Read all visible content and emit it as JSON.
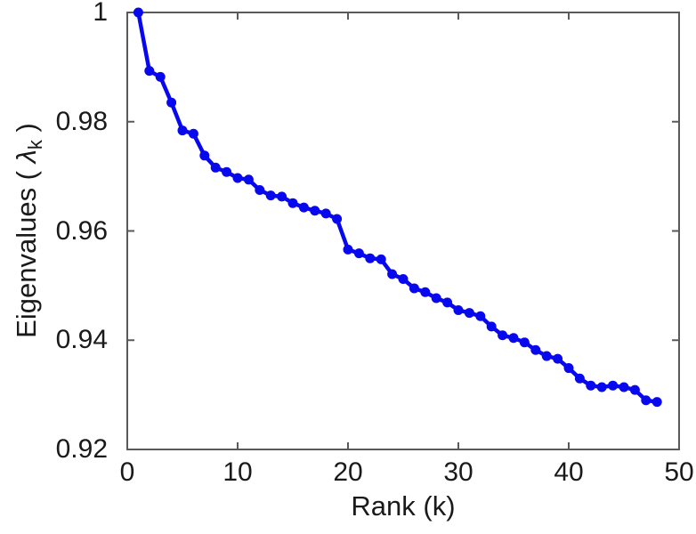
{
  "figure": {
    "background": "#ffffff",
    "axis_color": "#5a5a5a",
    "text_color": "#1a1a1a"
  },
  "chart_data": {
    "type": "line",
    "title": "",
    "xlabel": "Rank (k)",
    "ylabel": "Eigenvalues ( λk )",
    "ylabel_parts": {
      "prefix": "Eigenvalues ( ",
      "symbol": "λ",
      "subscript": "k",
      "suffix": " )"
    },
    "xlim": [
      0,
      50
    ],
    "ylim": [
      0.92,
      1.0
    ],
    "x_ticks": [
      0,
      10,
      20,
      30,
      40,
      50
    ],
    "x_tick_labels": [
      "0",
      "10",
      "20",
      "30",
      "40",
      "50"
    ],
    "y_ticks": [
      0.92,
      0.94,
      0.96,
      0.98,
      1
    ],
    "y_tick_labels": [
      "0.92",
      "0.94",
      "0.96",
      "0.98",
      "1"
    ],
    "grid": false,
    "legend": "none",
    "line_color": "#0808ee",
    "marker": "circle",
    "series": [
      {
        "name": "eigenvalues",
        "x": [
          1,
          2,
          3,
          4,
          5,
          6,
          7,
          8,
          9,
          10,
          11,
          12,
          13,
          14,
          15,
          16,
          17,
          18,
          19,
          20,
          21,
          22,
          23,
          24,
          25,
          26,
          27,
          28,
          29,
          30,
          31,
          32,
          33,
          34,
          35,
          36,
          37,
          38,
          39,
          40,
          41,
          42,
          43,
          44,
          45,
          46,
          47,
          48
        ],
        "y": [
          1.0,
          0.9893,
          0.9882,
          0.9835,
          0.9784,
          0.9778,
          0.9738,
          0.9716,
          0.9708,
          0.9697,
          0.9694,
          0.9675,
          0.9665,
          0.9663,
          0.9651,
          0.9643,
          0.9637,
          0.9632,
          0.9622,
          0.9566,
          0.9559,
          0.955,
          0.9548,
          0.9521,
          0.9512,
          0.9495,
          0.9488,
          0.9477,
          0.9469,
          0.9455,
          0.945,
          0.9444,
          0.9425,
          0.9409,
          0.9404,
          0.9396,
          0.9382,
          0.9371,
          0.9366,
          0.9349,
          0.933,
          0.9317,
          0.9314,
          0.9317,
          0.9314,
          0.9309,
          0.929,
          0.9287
        ]
      }
    ]
  }
}
